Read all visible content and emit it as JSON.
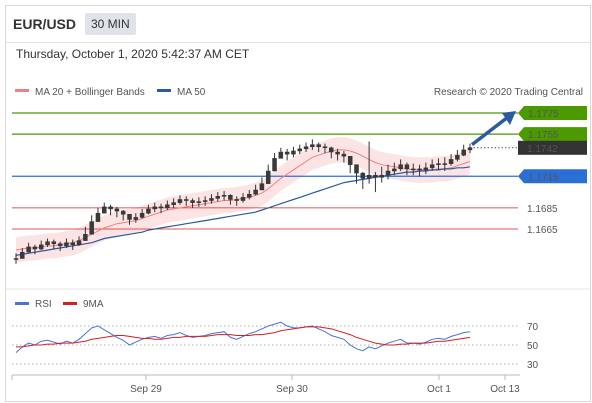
{
  "header": {
    "symbol": "EUR/USD",
    "timeframe": "30 MIN",
    "datetime": "Thursday, October 1, 2020 5:42:37 AM CET"
  },
  "legend": {
    "ma20_bb": "MA 20 + Bollinger Bands",
    "ma50": "MA 50",
    "research": "Research © 2020 Trading Central",
    "ma20_color": "#f08080",
    "ma50_color": "#2c5aa0"
  },
  "levels": [
    {
      "value": 1.1775,
      "label": "1.1775",
      "kind": "resistance",
      "color": "#4a9a00"
    },
    {
      "value": 1.1755,
      "label": "1.1755",
      "kind": "resistance",
      "color": "#4a9a00"
    },
    {
      "value": 1.1742,
      "label": "1.1742",
      "kind": "current",
      "color": "#333333"
    },
    {
      "value": 1.1715,
      "label": "1.1715",
      "kind": "pivot",
      "color": "#2b6fd6"
    },
    {
      "value": 1.1685,
      "label": "1.1685",
      "kind": "support",
      "color": "#d62020"
    },
    {
      "value": 1.1665,
      "label": "1.1665",
      "kind": "support",
      "color": "#d62020"
    }
  ],
  "chart_data": {
    "type": "line",
    "instrument": "EUR/USD",
    "interval": "30 MIN",
    "x_ticks": [
      "Sep 29",
      "Sep 30",
      "Oct 1",
      "Oct 13"
    ],
    "price_series": {
      "name": "EUR/USD",
      "close": [
        1.1637,
        1.1643,
        1.1648,
        1.1646,
        1.165,
        1.1653,
        1.1651,
        1.1649,
        1.1652,
        1.165,
        1.1654,
        1.166,
        1.1672,
        1.168,
        1.1686,
        1.1684,
        1.1682,
        1.1679,
        1.1674,
        1.1676,
        1.168,
        1.1684,
        1.1686,
        1.1685,
        1.1688,
        1.169,
        1.1693,
        1.1692,
        1.169,
        1.1691,
        1.1692,
        1.1694,
        1.1696,
        1.1697,
        1.1693,
        1.1692,
        1.1695,
        1.1698,
        1.1702,
        1.1708,
        1.172,
        1.1732,
        1.1738,
        1.1736,
        1.1739,
        1.1741,
        1.1743,
        1.1745,
        1.1743,
        1.1742,
        1.1738,
        1.1736,
        1.1734,
        1.1726,
        1.1718,
        1.1713,
        1.1716,
        1.1714,
        1.1716,
        1.172,
        1.1722,
        1.1726,
        1.1722,
        1.1722,
        1.1721,
        1.1723,
        1.1726,
        1.1727,
        1.1727,
        1.1731,
        1.1735,
        1.174,
        1.1742
      ],
      "high": [
        1.1642,
        1.1647,
        1.1652,
        1.165,
        1.1654,
        1.1656,
        1.1655,
        1.1653,
        1.1656,
        1.1655,
        1.1658,
        1.1667,
        1.1678,
        1.1685,
        1.169,
        1.1688,
        1.1686,
        1.1683,
        1.1679,
        1.168,
        1.1684,
        1.1688,
        1.169,
        1.1689,
        1.1692,
        1.1694,
        1.1697,
        1.1696,
        1.1694,
        1.1695,
        1.1696,
        1.1698,
        1.17,
        1.1701,
        1.1698,
        1.1696,
        1.1699,
        1.1702,
        1.1707,
        1.1714,
        1.1726,
        1.1737,
        1.1742,
        1.1741,
        1.1743,
        1.1745,
        1.1747,
        1.175,
        1.1747,
        1.1746,
        1.1743,
        1.1741,
        1.1739,
        1.1732,
        1.1724,
        1.1719,
        1.1748,
        1.1719,
        1.1724,
        1.1726,
        1.1728,
        1.1731,
        1.1728,
        1.1727,
        1.1726,
        1.1728,
        1.1731,
        1.1732,
        1.1733,
        1.1736,
        1.174,
        1.1745,
        1.1746
      ],
      "low": [
        1.1632,
        1.1638,
        1.1643,
        1.1641,
        1.1645,
        1.1648,
        1.1646,
        1.1644,
        1.1647,
        1.1645,
        1.1649,
        1.1654,
        1.1662,
        1.1672,
        1.168,
        1.1678,
        1.1676,
        1.1673,
        1.1669,
        1.1671,
        1.1675,
        1.1679,
        1.1681,
        1.168,
        1.1683,
        1.1685,
        1.1688,
        1.1687,
        1.1685,
        1.1686,
        1.1687,
        1.1689,
        1.1691,
        1.1692,
        1.1688,
        1.1687,
        1.169,
        1.1693,
        1.1697,
        1.1702,
        1.1712,
        1.1725,
        1.1732,
        1.173,
        1.1733,
        1.1736,
        1.1738,
        1.174,
        1.1738,
        1.1737,
        1.1732,
        1.173,
        1.1728,
        1.1718,
        1.1708,
        1.1703,
        1.1708,
        1.17,
        1.1709,
        1.1712,
        1.1716,
        1.172,
        1.1716,
        1.1716,
        1.1715,
        1.1717,
        1.172,
        1.1721,
        1.172,
        1.1725,
        1.1729,
        1.1734,
        1.1737
      ]
    },
    "ma20": [
      1.1645,
      1.1646,
      1.1647,
      1.1647,
      1.1648,
      1.1649,
      1.1649,
      1.165,
      1.1651,
      1.1652,
      1.1654,
      1.1657,
      1.166,
      1.1663,
      1.1666,
      1.1668,
      1.167,
      1.1671,
      1.1672,
      1.1673,
      1.1675,
      1.1677,
      1.1679,
      1.1681,
      1.1683,
      1.1684,
      1.1685,
      1.1686,
      1.1687,
      1.1688,
      1.1689,
      1.169,
      1.1691,
      1.1692,
      1.1692,
      1.1693,
      1.1694,
      1.1695,
      1.1697,
      1.1699,
      1.1703,
      1.1708,
      1.1713,
      1.1717,
      1.1721,
      1.1725,
      1.1729,
      1.1733,
      1.1735,
      1.1737,
      1.1739,
      1.174,
      1.174,
      1.1739,
      1.1737,
      1.1734,
      1.1731,
      1.1728,
      1.1726,
      1.1725,
      1.1724,
      1.1723,
      1.1722,
      1.1721,
      1.1721,
      1.1721,
      1.1721,
      1.1722,
      1.1722,
      1.1723,
      1.1725,
      1.1727,
      1.1729
    ],
    "ma50": [
      1.164,
      1.1641,
      1.1642,
      1.1643,
      1.1644,
      1.1645,
      1.1646,
      1.1647,
      1.1648,
      1.1649,
      1.165,
      1.1651,
      1.1652,
      1.1654,
      1.1656,
      1.1657,
      1.1658,
      1.1659,
      1.166,
      1.1661,
      1.1662,
      1.1664,
      1.1665,
      1.1666,
      1.1667,
      1.1668,
      1.1669,
      1.167,
      1.1671,
      1.1672,
      1.1673,
      1.1674,
      1.1675,
      1.1676,
      1.1677,
      1.1678,
      1.1679,
      1.168,
      1.1681,
      1.1683,
      1.1685,
      1.1687,
      1.1689,
      1.1691,
      1.1693,
      1.1695,
      1.1697,
      1.1699,
      1.1701,
      1.1703,
      1.1705,
      1.1707,
      1.1709,
      1.171,
      1.1711,
      1.1712,
      1.1713,
      1.1714,
      1.1715,
      1.1716,
      1.1717,
      1.1718,
      1.1719,
      1.1719,
      1.172,
      1.172,
      1.1721,
      1.1721,
      1.1722,
      1.1722,
      1.1723,
      1.1723,
      1.1724
    ],
    "bb_width": 0.0012,
    "projection_arrow": {
      "from_value": 1.1745,
      "to_value": 1.1775
    },
    "price_range": [
      1.162,
      1.18
    ],
    "rsi_panel": {
      "legend": [
        "RSI",
        "9MA"
      ],
      "rsi_color": "#4a72d8",
      "ma9_color": "#d62020",
      "y_ticks": [
        70,
        50,
        30
      ],
      "ylim": [
        20,
        80
      ],
      "rsi": [
        42,
        48,
        52,
        50,
        54,
        55,
        53,
        51,
        54,
        52,
        56,
        62,
        68,
        70,
        66,
        62,
        58,
        55,
        50,
        53,
        56,
        58,
        59,
        57,
        60,
        61,
        63,
        60,
        58,
        59,
        60,
        62,
        63,
        64,
        58,
        56,
        59,
        62,
        64,
        67,
        70,
        72,
        74,
        70,
        68,
        68,
        69,
        70,
        67,
        64,
        60,
        58,
        56,
        50,
        46,
        44,
        48,
        46,
        49,
        52,
        54,
        56,
        52,
        52,
        51,
        53,
        56,
        57,
        56,
        59,
        61,
        63,
        64
      ],
      "ma9": [
        48,
        48,
        49,
        50,
        50,
        51,
        51,
        52,
        52,
        52,
        53,
        54,
        56,
        57,
        58,
        59,
        60,
        60,
        59,
        58,
        57,
        57,
        56,
        56,
        57,
        58,
        58,
        59,
        59,
        59,
        59,
        60,
        61,
        61,
        61,
        60,
        60,
        60,
        61,
        61,
        62,
        63,
        65,
        66,
        67,
        68,
        69,
        69,
        69,
        68,
        67,
        65,
        63,
        61,
        58,
        56,
        54,
        52,
        51,
        50,
        50,
        51,
        51,
        52,
        52,
        52,
        53,
        54,
        54,
        55,
        56,
        57,
        58
      ]
    }
  }
}
